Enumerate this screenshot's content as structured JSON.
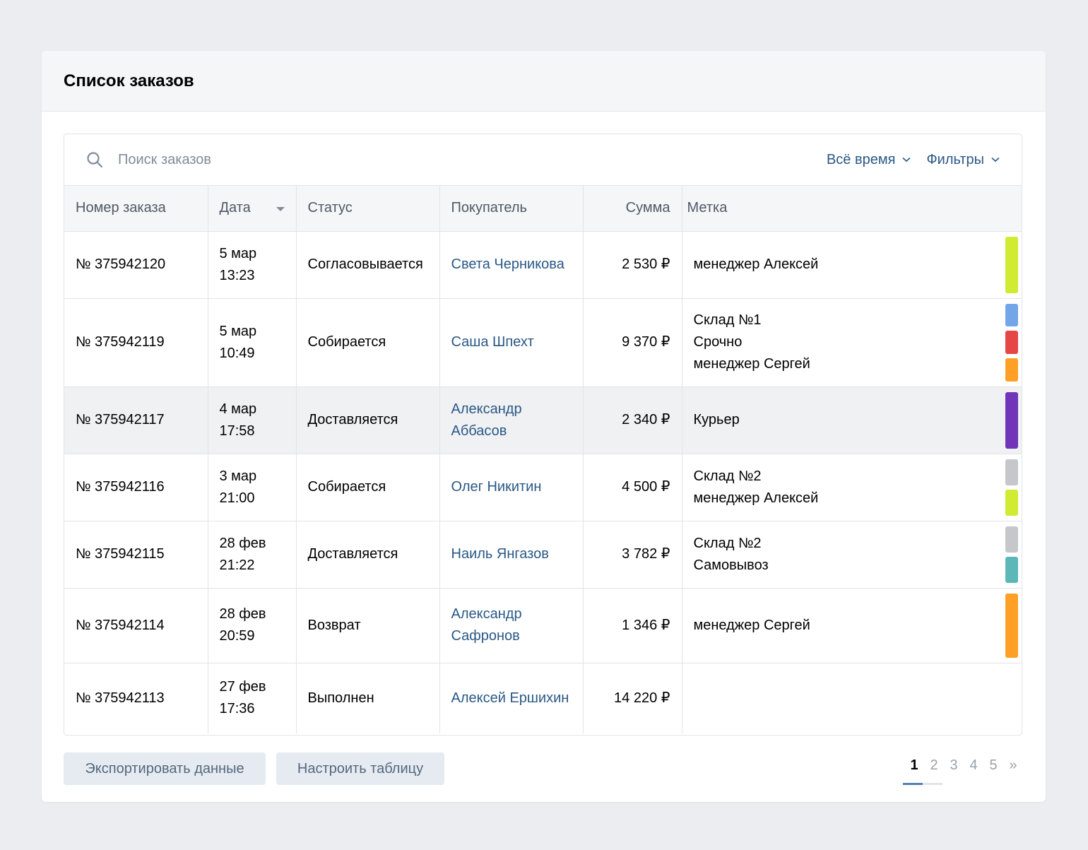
{
  "header": {
    "title": "Список заказов"
  },
  "search": {
    "placeholder": "Поиск заказов"
  },
  "filters": {
    "period_label": "Всё время",
    "filters_label": "Фильтры"
  },
  "columns": {
    "order": "Номер заказа",
    "date": "Дата",
    "status": "Статус",
    "buyer": "Покупатель",
    "sum": "Сумма",
    "tag": "Метка"
  },
  "rows": [
    {
      "order": "№ 375942120",
      "date": "5 мар",
      "time": "13:23",
      "status": "Согласовывается",
      "buyer": "Света Черникова",
      "sum": "2 530 ₽",
      "tags": [
        "менеджер Алексей"
      ],
      "colors": [
        "#d0eb31"
      ],
      "highlight": false
    },
    {
      "order": "№ 375942119",
      "date": "5 мар",
      "time": "10:49",
      "status": "Собирается",
      "buyer": "Саша Шпехт",
      "sum": "9 370 ₽",
      "tags": [
        "Склад №1",
        "Срочно",
        "менеджер Сергей"
      ],
      "colors": [
        "#73a6e8",
        "#e64646",
        "#ffa026"
      ],
      "highlight": false
    },
    {
      "order": "№ 375942117",
      "date": "4 мар",
      "time": "17:58",
      "status": "Доставляется",
      "buyer": "Александр Аббасов",
      "sum": "2 340 ₽",
      "tags": [
        "Курьер"
      ],
      "colors": [
        "#7035b8"
      ],
      "highlight": true
    },
    {
      "order": "№ 375942116",
      "date": "3 мар",
      "time": "21:00",
      "status": "Собирается",
      "buyer": "Олег Никитин",
      "sum": "4 500 ₽",
      "tags": [
        "Склад №2",
        "менеджер Алексей"
      ],
      "colors": [
        "#c5c7ca",
        "#d0eb31"
      ],
      "highlight": false
    },
    {
      "order": "№ 375942115",
      "date": "28 фев",
      "time": "21:22",
      "status": "Доставляется",
      "buyer": "Наиль Янгазов",
      "sum": "3 782 ₽",
      "tags": [
        "Склад №2",
        "Самовывоз"
      ],
      "colors": [
        "#c5c7ca",
        "#5cb8b8"
      ],
      "highlight": false
    },
    {
      "order": "№ 375942114",
      "date": "28 фев",
      "time": "20:59",
      "status": "Возврат",
      "buyer": "Александр Сафронов",
      "sum": "1 346 ₽",
      "tags": [
        "менеджер Сергей"
      ],
      "colors": [
        "#ffa026"
      ],
      "highlight": false
    },
    {
      "order": "№ 375942113",
      "date": "27 фев",
      "time": "17:36",
      "status": "Выполнен",
      "buyer": "Алексей Ершихин",
      "sum": "14 220 ₽",
      "tags": [],
      "colors": [],
      "highlight": false
    }
  ],
  "footer": {
    "export_label": "Экспортировать данные",
    "configure_label": "Настроить таблицу"
  },
  "pagination": {
    "pages": [
      "1",
      "2",
      "3",
      "4",
      "5"
    ],
    "next": "»",
    "current": "1"
  }
}
